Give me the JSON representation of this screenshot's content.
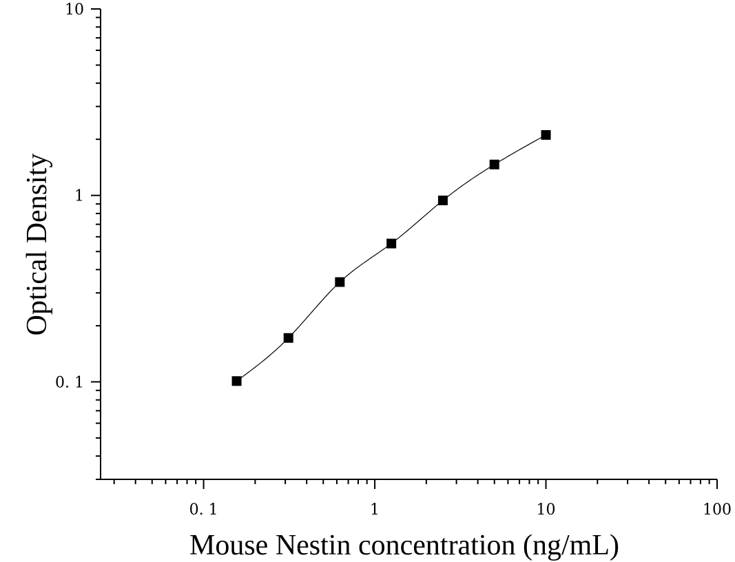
{
  "chart_data": {
    "type": "scatter",
    "title": "",
    "xlabel": "Mouse Nestin concentration (ng/mL)",
    "ylabel": "Optical Density",
    "xscale": "log",
    "yscale": "log",
    "xlim": [
      0.025,
      100
    ],
    "ylim": [
      0.03,
      10
    ],
    "x_ticks": [
      0.1,
      1,
      10,
      100
    ],
    "x_tick_labels": [
      "0. 1",
      "1",
      "10",
      "100"
    ],
    "y_ticks": [
      0.1,
      1,
      10
    ],
    "y_tick_labels": [
      "0. 1",
      "1",
      "10"
    ],
    "grid": false,
    "legend": "none",
    "marker": "square",
    "fit_curve": true,
    "color": "#000000",
    "series": [
      {
        "x": [
          0.156,
          0.313,
          0.625,
          1.25,
          2.5,
          5,
          10
        ],
        "y": [
          0.101,
          0.172,
          0.343,
          0.552,
          0.94,
          1.465,
          2.11
        ]
      }
    ]
  }
}
